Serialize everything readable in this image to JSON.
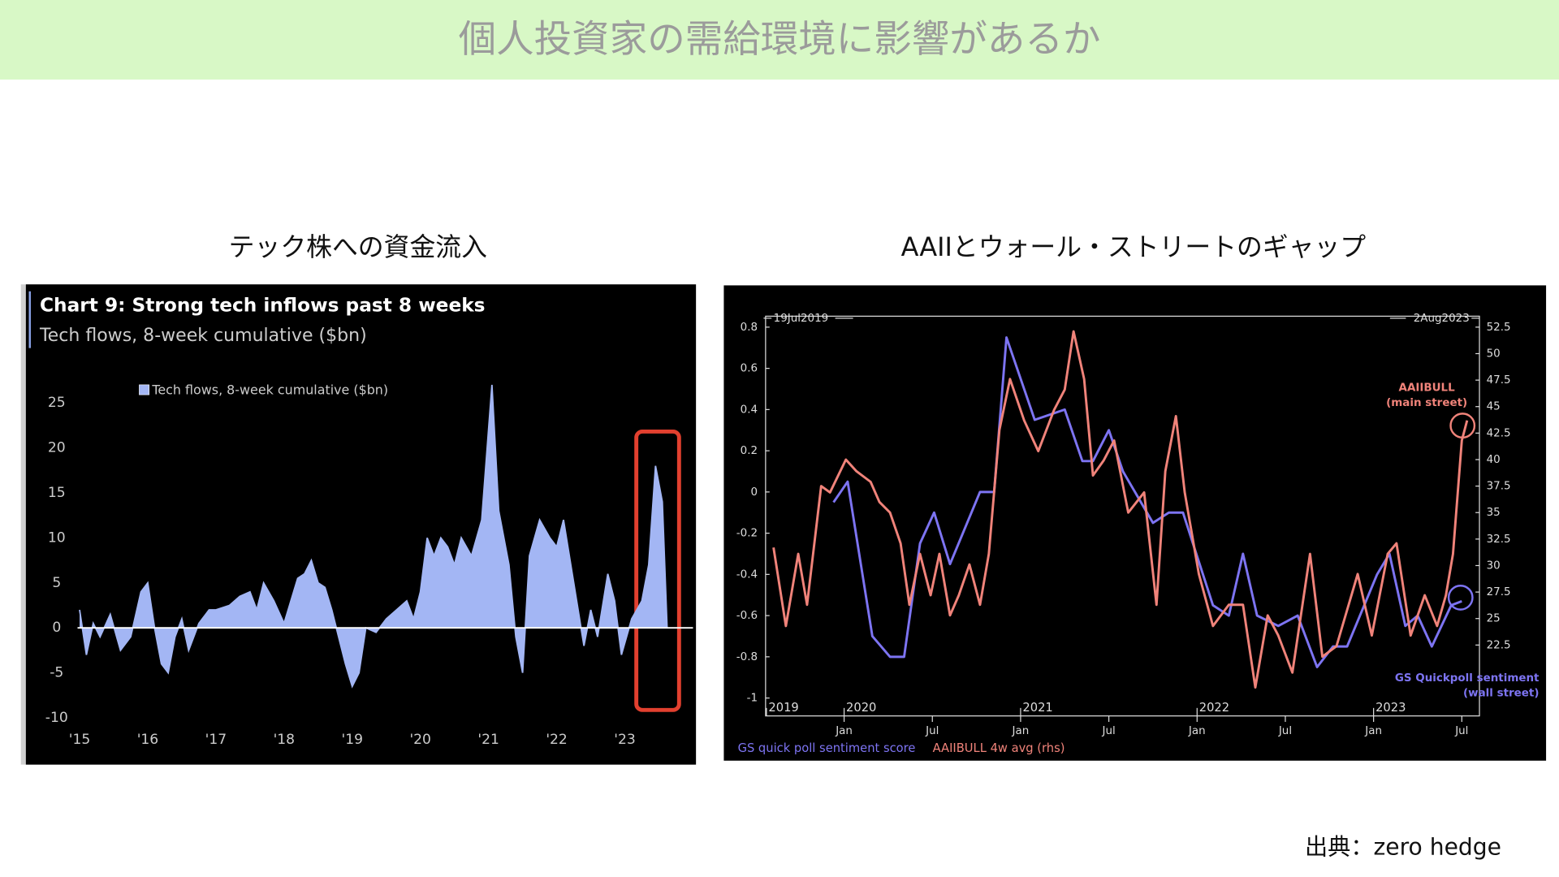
{
  "header": {
    "title": "個人投資家の需給環境に影響があるか"
  },
  "sections": [
    {
      "title": "テック株への資金流入"
    },
    {
      "title": "AAIIとウォール・ストリートのギャップ"
    }
  ],
  "source": "出典：zero hedge",
  "chart_data": [
    {
      "type": "area",
      "title": "Chart 9: Strong tech inflows past 8 weeks",
      "subtitle": "Tech flows, 8-week cumulative ($bn)",
      "xlim": [
        2014.97,
        2024.0
      ],
      "ylim": [
        -11,
        28
      ],
      "xticks": [
        {
          "value": 2015,
          "label": "'15"
        },
        {
          "value": 2016,
          "label": "'16"
        },
        {
          "value": 2017,
          "label": "'17"
        },
        {
          "value": 2018,
          "label": "'18"
        },
        {
          "value": 2019,
          "label": "'19"
        },
        {
          "value": 2020,
          "label": "'20"
        },
        {
          "value": 2021,
          "label": "'21"
        },
        {
          "value": 2022,
          "label": "'22"
        },
        {
          "value": 2023,
          "label": "'23"
        }
      ],
      "yticks": [
        25,
        20,
        15,
        10,
        5,
        0,
        -5,
        -10
      ],
      "series": [
        {
          "name": "Tech flows, 8-week cumulative ($bn)",
          "color": "#a3b6f4",
          "x": [
            2015.0,
            2015.1,
            2015.2,
            2015.3,
            2015.45,
            2015.6,
            2015.75,
            2015.9,
            2016.0,
            2016.1,
            2016.2,
            2016.3,
            2016.4,
            2016.5,
            2016.6,
            2016.75,
            2016.9,
            2017.0,
            2017.2,
            2017.35,
            2017.5,
            2017.6,
            2017.7,
            2017.85,
            2018.0,
            2018.1,
            2018.2,
            2018.3,
            2018.4,
            2018.5,
            2018.6,
            2018.7,
            2018.8,
            2018.9,
            2019.0,
            2019.1,
            2019.2,
            2019.35,
            2019.5,
            2019.65,
            2019.8,
            2019.9,
            2020.0,
            2020.1,
            2020.2,
            2020.3,
            2020.4,
            2020.5,
            2020.6,
            2020.75,
            2020.9,
            2021.0,
            2021.05,
            2021.15,
            2021.3,
            2021.4,
            2021.5,
            2021.6,
            2021.75,
            2021.9,
            2022.0,
            2022.1,
            2022.25,
            2022.4,
            2022.5,
            2022.6,
            2022.75,
            2022.85,
            2022.95,
            2023.1,
            2023.25,
            2023.35,
            2023.45,
            2023.55,
            2023.62
          ],
          "values": [
            2,
            -3,
            0.5,
            -1,
            1.5,
            -2.5,
            -1,
            4,
            5,
            0,
            -4,
            -5,
            -1,
            1,
            -2.5,
            0.5,
            2,
            2,
            2.5,
            3.5,
            4,
            2,
            5,
            3,
            0.5,
            3,
            5.5,
            6,
            7.5,
            5,
            4.5,
            2,
            -1,
            -4,
            -6.5,
            -5,
            0,
            -0.5,
            1,
            2,
            3,
            1,
            4,
            10,
            8,
            10,
            9,
            7,
            10,
            8,
            12,
            22,
            27,
            13,
            7,
            -1,
            -5,
            8,
            12,
            10,
            9,
            12,
            5,
            -2,
            2,
            -1,
            6,
            3,
            -3,
            1,
            3,
            7,
            18,
            14,
            0
          ]
        }
      ]
    },
    {
      "type": "line",
      "date_labels": [
        "19Jul2019",
        "2Aug2023"
      ],
      "annotations": [
        [
          "AAIIBULL",
          "(main street)"
        ],
        [
          "GS Quickpoll sentiment",
          "(wall street)"
        ]
      ],
      "xlim": [
        2019.555,
        2023.6
      ],
      "ylim": [
        -1,
        0.8
      ],
      "y2lim": [
        17.5,
        52.5
      ],
      "xticks": [
        {
          "value": 2020,
          "label": "Jan"
        },
        {
          "value": 2020.5,
          "label": "Jul"
        },
        {
          "value": 2021,
          "label": "Jan"
        },
        {
          "value": 2021.5,
          "label": "Jul"
        },
        {
          "value": 2022,
          "label": "Jan"
        },
        {
          "value": 2022.5,
          "label": "Jul"
        },
        {
          "value": 2023,
          "label": "Jan"
        },
        {
          "value": 2023.5,
          "label": "Jul"
        }
      ],
      "year_ticks": [
        {
          "value": 2019.56,
          "label": "2019"
        },
        2020,
        2021,
        2022,
        2023
      ],
      "yticks": [
        0.8,
        0.6,
        0.4,
        0.2,
        0,
        -0.2,
        -0.4,
        -0.6,
        -0.8,
        -1
      ],
      "y2ticks": [
        52.5,
        50,
        47.5,
        45,
        42.5,
        40,
        37.5,
        35,
        32.5,
        30,
        27.5,
        25,
        22.5
      ],
      "series": [
        {
          "name": "GS quick poll sentiment score",
          "color": "#7d74f2",
          "x": [
            2019.94,
            2020.02,
            2020.16,
            2020.26,
            2020.34,
            2020.43,
            2020.51,
            2020.6,
            2020.77,
            2020.85,
            2020.92,
            2021.08,
            2021.25,
            2021.35,
            2021.41,
            2021.5,
            2021.58,
            2021.75,
            2021.84,
            2021.92,
            2022.09,
            2022.18,
            2022.26,
            2022.34,
            2022.46,
            2022.57,
            2022.68,
            2022.77,
            2022.85,
            2023.02,
            2023.09,
            2023.18,
            2023.25,
            2023.33,
            2023.44,
            2023.5
          ],
          "values": [
            -0.05,
            0.05,
            -0.7,
            -0.8,
            -0.8,
            -0.25,
            -0.1,
            -0.35,
            0,
            0,
            0.75,
            0.35,
            0.4,
            0.15,
            0.15,
            0.3,
            0.1,
            -0.15,
            -0.1,
            -0.1,
            -0.55,
            -0.6,
            -0.3,
            -0.6,
            -0.65,
            -0.6,
            -0.85,
            -0.75,
            -0.75,
            -0.4,
            -0.3,
            -0.65,
            -0.6,
            -0.75,
            -0.55,
            -0.53
          ]
        },
        {
          "name": "AAIIBULL 4w avg (rhs)",
          "color": "#f0837a",
          "axis": "y2",
          "x": [
            2019.6,
            2019.67,
            2019.74,
            2019.79,
            2019.87,
            2019.92,
            2020.01,
            2020.07,
            2020.15,
            2020.2,
            2020.26,
            2020.32,
            2020.37,
            2020.43,
            2020.49,
            2020.54,
            2020.6,
            2020.65,
            2020.71,
            2020.77,
            2020.82,
            2020.88,
            2020.94,
            2021.02,
            2021.1,
            2021.19,
            2021.25,
            2021.3,
            2021.36,
            2021.41,
            2021.47,
            2021.53,
            2021.61,
            2021.7,
            2021.77,
            2021.82,
            2021.88,
            2021.93,
            2022.01,
            2022.09,
            2022.18,
            2022.26,
            2022.33,
            2022.4,
            2022.46,
            2022.54,
            2022.64,
            2022.71,
            2022.79,
            2022.91,
            2022.99,
            2023.08,
            2023.13,
            2023.21,
            2023.29,
            2023.36,
            2023.41,
            2023.45,
            2023.5,
            2023.53
          ],
          "values": [
            31.7,
            24.3,
            31.1,
            26.3,
            37.5,
            36.9,
            40.0,
            38.9,
            37.9,
            36.0,
            35.0,
            32.1,
            26.3,
            31.1,
            27.2,
            31.1,
            25.3,
            27.2,
            30.1,
            26.3,
            31.1,
            42.8,
            47.6,
            43.7,
            40.8,
            44.7,
            46.6,
            52.1,
            47.6,
            38.5,
            39.9,
            41.8,
            35.0,
            36.9,
            26.3,
            38.9,
            44.1,
            36.9,
            29.2,
            24.3,
            26.3,
            26.3,
            18.5,
            25.3,
            23.4,
            19.9,
            31.1,
            21.4,
            22.4,
            29.2,
            23.4,
            31.1,
            32.1,
            23.4,
            27.2,
            24.3,
            27.2,
            31.1,
            41.8,
            43.7
          ]
        }
      ]
    }
  ]
}
